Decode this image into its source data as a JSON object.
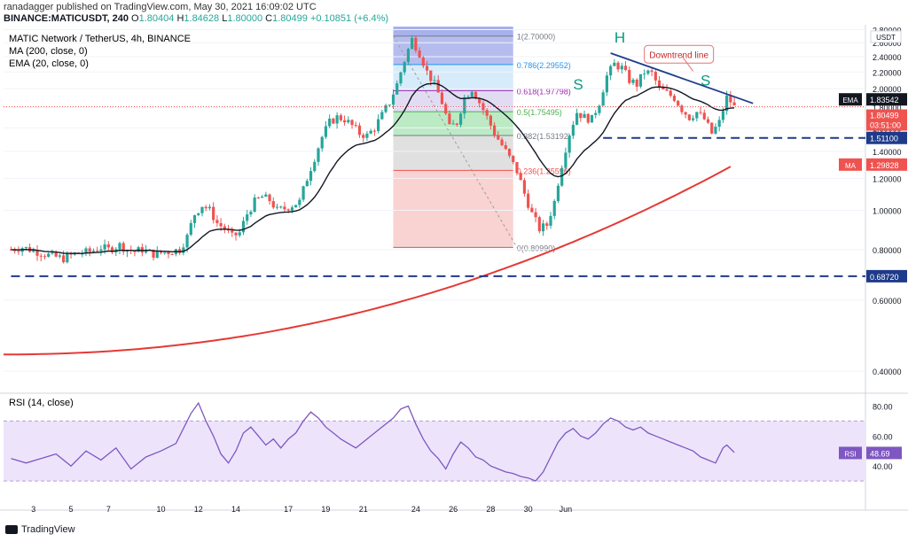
{
  "header": {
    "published": "ranadagger published on TradingView.com, May 30, 2021 16:09:02 UTC",
    "symbol": "BINANCE:MATICUSDT, 240",
    "o_label": "O",
    "o": "1.80404",
    "h_label": "H",
    "h": "1.84628",
    "l_label": "L",
    "l": "1.80000",
    "c_label": "C",
    "c": "1.80499",
    "change": "+0.10851 (+6.4%)"
  },
  "legend": {
    "title": "MATIC Network / TetherUS, 4h, BINANCE",
    "ma": "MA (200, close, 0)",
    "ema": "EMA (20, close, 0)",
    "rsi": "RSI (14, close)"
  },
  "footer": {
    "brand": "TradingView"
  },
  "colors": {
    "up": "#26a69a",
    "down": "#ef5350",
    "ema": "#131722",
    "ma": "#e53935",
    "rsi": "#7e57c2",
    "level": "#1e3a8a",
    "trend": "#1e3f8a",
    "pattern": "#089981"
  },
  "chart_data": [
    {
      "type": "candlestick",
      "title": "MATIC Network / TetherUS, 4h, BINANCE",
      "currency": "USDT",
      "y_axis": "log",
      "ylim": [
        0.36,
        2.85
      ],
      "y_ticks": [
        "2.80000",
        "2.60000",
        "2.40000",
        "2.20000",
        "2.00000",
        "1.80000",
        "1.60000",
        "1.40000",
        "1.20000",
        "1.00000",
        "0.80000",
        "0.60000",
        "0.40000"
      ],
      "x_ticks": [
        "3",
        "5",
        "7",
        "10",
        "12",
        "14",
        "17",
        "19",
        "21",
        "24",
        "26",
        "28",
        "30",
        "Jun"
      ],
      "ohlc_last": {
        "open": 1.80404,
        "high": 1.84628,
        "low": 1.8,
        "close": 1.80499
      },
      "price_path": [
        [
          2,
          0.8
        ],
        [
          5,
          0.81
        ],
        [
          9,
          0.79
        ],
        [
          13,
          0.77
        ],
        [
          16,
          0.76
        ],
        [
          19,
          0.78
        ],
        [
          23,
          0.79
        ],
        [
          26,
          0.81
        ],
        [
          28,
          0.8
        ],
        [
          31,
          0.82
        ],
        [
          33,
          0.8
        ],
        [
          35,
          0.79
        ],
        [
          37,
          0.8
        ],
        [
          40,
          0.78
        ],
        [
          44,
          0.79
        ],
        [
          47,
          0.8
        ],
        [
          49,
          0.86
        ],
        [
          51,
          0.98
        ],
        [
          53,
          1.03
        ],
        [
          55,
          1.0
        ],
        [
          57,
          0.93
        ],
        [
          59,
          0.9
        ],
        [
          61,
          0.86
        ],
        [
          63,
          0.88
        ],
        [
          65,
          0.98
        ],
        [
          67,
          1.05
        ],
        [
          69,
          1.08
        ],
        [
          71,
          1.06
        ],
        [
          73,
          1.0
        ],
        [
          75,
          1.01
        ],
        [
          77,
          1.03
        ],
        [
          79,
          1.05
        ],
        [
          81,
          1.2
        ],
        [
          83,
          1.35
        ],
        [
          85,
          1.52
        ],
        [
          87,
          1.65
        ],
        [
          89,
          1.7
        ],
        [
          91,
          1.68
        ],
        [
          93,
          1.62
        ],
        [
          95,
          1.55
        ],
        [
          97,
          1.53
        ],
        [
          99,
          1.6
        ],
        [
          101,
          1.72
        ],
        [
          103,
          1.85
        ],
        [
          105,
          2.05
        ],
        [
          107,
          2.35
        ],
        [
          109,
          2.65
        ],
        [
          111,
          2.45
        ],
        [
          113,
          2.2
        ],
        [
          115,
          2.05
        ],
        [
          117,
          1.85
        ],
        [
          119,
          1.6
        ],
        [
          121,
          1.65
        ],
        [
          123,
          1.9
        ],
        [
          125,
          2.0
        ],
        [
          127,
          1.85
        ],
        [
          129,
          1.7
        ],
        [
          131,
          1.55
        ],
        [
          133,
          1.45
        ],
        [
          135,
          1.35
        ],
        [
          137,
          1.25
        ],
        [
          139,
          1.1
        ],
        [
          141,
          0.98
        ],
        [
          143,
          0.9
        ],
        [
          145,
          0.92
        ],
        [
          147,
          1.05
        ],
        [
          149,
          1.3
        ],
        [
          151,
          1.55
        ],
        [
          153,
          1.75
        ],
        [
          155,
          1.7
        ],
        [
          157,
          1.68
        ],
        [
          159,
          1.85
        ],
        [
          161,
          2.15
        ],
        [
          163,
          2.3
        ],
        [
          165,
          2.25
        ],
        [
          167,
          2.1
        ],
        [
          169,
          2.05
        ],
        [
          171,
          2.2
        ],
        [
          173,
          2.18
        ],
        [
          175,
          2.0
        ],
        [
          177,
          1.95
        ],
        [
          179,
          1.9
        ],
        [
          181,
          1.78
        ],
        [
          183,
          1.7
        ],
        [
          185,
          1.75
        ],
        [
          187,
          1.68
        ],
        [
          189,
          1.55
        ],
        [
          191,
          1.65
        ],
        [
          193,
          1.9
        ],
        [
          194,
          1.86
        ],
        [
          195,
          1.8
        ]
      ],
      "ema20_last": 1.83542,
      "ma200_last": 1.29828,
      "levels": [
        {
          "value": 1.511,
          "label": "1.51100",
          "style": "dashed"
        },
        {
          "value": 0.6872,
          "label": "0.68720",
          "style": "dashed"
        }
      ],
      "fibonacci": [
        {
          "ratio": "1",
          "value": "2.70000",
          "label": "1(2.70000)"
        },
        {
          "ratio": "0.786",
          "value": "2.29552",
          "label": "0.786(2.29552)"
        },
        {
          "ratio": "0.618",
          "value": "1.97798",
          "label": "0.618(1.97798)"
        },
        {
          "ratio": "0.5",
          "value": "1.75495",
          "label": "0.5(1.75495)"
        },
        {
          "ratio": "0.382",
          "value": "1.53192",
          "label": "0.382(1.53192)"
        },
        {
          "ratio": "0.236",
          "value": "1.25596",
          "label": "0.236(1.25596)"
        },
        {
          "ratio": "0",
          "value": "0.80990",
          "label": "0(0.80990)"
        }
      ],
      "annotations": {
        "shoulder_left": "S",
        "head": "H",
        "shoulder_right": "S",
        "trendline": "Downtrend line"
      },
      "price_labels": {
        "currency": "USDT",
        "ema": {
          "tag": "EMA",
          "value": "1.83542"
        },
        "last": {
          "value": "1.80499",
          "countdown": "03:51:00"
        },
        "ma": {
          "tag": "MA",
          "value": "1.29828"
        }
      }
    },
    {
      "type": "line",
      "title": "RSI (14, close)",
      "ylim": [
        20,
        85
      ],
      "y_ticks": [
        "80.00",
        "60.00",
        "40.00"
      ],
      "band": [
        30,
        70
      ],
      "last": {
        "tag": "RSI",
        "value": "48.69"
      },
      "series": [
        [
          2,
          45
        ],
        [
          6,
          42
        ],
        [
          10,
          45
        ],
        [
          14,
          48
        ],
        [
          18,
          40
        ],
        [
          22,
          50
        ],
        [
          26,
          44
        ],
        [
          30,
          52
        ],
        [
          34,
          38
        ],
        [
          38,
          46
        ],
        [
          42,
          50
        ],
        [
          46,
          55
        ],
        [
          50,
          75
        ],
        [
          52,
          82
        ],
        [
          54,
          70
        ],
        [
          56,
          60
        ],
        [
          58,
          48
        ],
        [
          60,
          42
        ],
        [
          62,
          50
        ],
        [
          64,
          62
        ],
        [
          66,
          66
        ],
        [
          68,
          60
        ],
        [
          70,
          54
        ],
        [
          72,
          58
        ],
        [
          74,
          52
        ],
        [
          76,
          58
        ],
        [
          78,
          62
        ],
        [
          80,
          70
        ],
        [
          82,
          76
        ],
        [
          84,
          72
        ],
        [
          86,
          66
        ],
        [
          88,
          62
        ],
        [
          90,
          58
        ],
        [
          92,
          55
        ],
        [
          94,
          52
        ],
        [
          96,
          56
        ],
        [
          98,
          60
        ],
        [
          100,
          64
        ],
        [
          102,
          68
        ],
        [
          104,
          72
        ],
        [
          106,
          78
        ],
        [
          108,
          80
        ],
        [
          110,
          68
        ],
        [
          112,
          58
        ],
        [
          114,
          50
        ],
        [
          116,
          45
        ],
        [
          118,
          38
        ],
        [
          120,
          48
        ],
        [
          122,
          56
        ],
        [
          124,
          52
        ],
        [
          126,
          46
        ],
        [
          128,
          44
        ],
        [
          130,
          40
        ],
        [
          132,
          38
        ],
        [
          134,
          36
        ],
        [
          136,
          35
        ],
        [
          138,
          33
        ],
        [
          140,
          32
        ],
        [
          142,
          30
        ],
        [
          144,
          36
        ],
        [
          146,
          46
        ],
        [
          148,
          56
        ],
        [
          150,
          62
        ],
        [
          152,
          65
        ],
        [
          154,
          60
        ],
        [
          156,
          58
        ],
        [
          158,
          62
        ],
        [
          160,
          68
        ],
        [
          162,
          72
        ],
        [
          164,
          70
        ],
        [
          166,
          66
        ],
        [
          168,
          64
        ],
        [
          170,
          66
        ],
        [
          172,
          62
        ],
        [
          174,
          60
        ],
        [
          176,
          58
        ],
        [
          178,
          56
        ],
        [
          180,
          54
        ],
        [
          182,
          52
        ],
        [
          184,
          50
        ],
        [
          186,
          46
        ],
        [
          188,
          44
        ],
        [
          190,
          42
        ],
        [
          192,
          52
        ],
        [
          193,
          54
        ],
        [
          195,
          49
        ]
      ]
    }
  ]
}
